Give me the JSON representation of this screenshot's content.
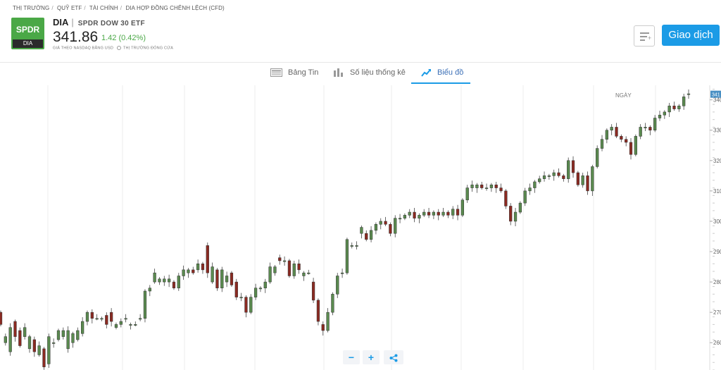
{
  "breadcrumb": [
    "THỊ TRƯỜNG",
    "QUỸ ETF",
    "TÀI CHÍNH",
    "DIA HỢP ĐỒNG CHÊNH LỆCH (CFD)"
  ],
  "logo": {
    "top": "SPDR",
    "bottom": "DIA",
    "color": "#4aa846"
  },
  "instrument": {
    "symbol": "DIA",
    "name": "SPDR DOW 30 ETF",
    "price": "341.86",
    "change": "1.42 (0.42%)",
    "price_note": "GIÁ THEO NASDAQ BẰNG USD",
    "market_status": "THỊ TRƯỜNG ĐÓNG CỬA"
  },
  "buttons": {
    "trade": "Giao dịch",
    "zoom_out": "−",
    "zoom_in": "+"
  },
  "icons": {
    "watchlist": "add-to-watchlist-icon",
    "share": "share-icon"
  },
  "tabs": [
    {
      "label": "Bảng Tin",
      "icon": "news-icon",
      "active": false
    },
    {
      "label": "Số liệu thống kê",
      "icon": "stats-icon",
      "active": false
    },
    {
      "label": "Biểu đồ",
      "icon": "chart-icon",
      "active": true
    }
  ],
  "colors": {
    "accent": "#1b9be6",
    "up": "#5a8a4f",
    "down": "#8b2a22",
    "tab_active_text": "#3b6fb6"
  },
  "chart_data": {
    "type": "candlestick",
    "period_label": "NGÀY",
    "y_ticks": [
      260,
      270,
      280,
      290,
      300,
      310,
      320,
      330,
      340
    ],
    "y_tick_labels": [
      "260",
      "270",
      "280",
      "290",
      "300",
      "310",
      "320",
      "330",
      "340"
    ],
    "ylim": [
      251,
      344.8
    ],
    "last_price_label": "341",
    "last_price": 341.86,
    "grid": true,
    "candles": [
      [
        270,
        266
      ],
      [
        260,
        262
      ],
      [
        257,
        265
      ],
      [
        267,
        262
      ],
      [
        264,
        259
      ],
      [
        262,
        265
      ],
      [
        258,
        262
      ],
      [
        261,
        257
      ],
      [
        256,
        259
      ],
      [
        258,
        252
      ],
      [
        253,
        262
      ],
      [
        260,
        260
      ],
      [
        261,
        264
      ],
      [
        262,
        264
      ],
      [
        258,
        264
      ],
      [
        260,
        263
      ],
      [
        261,
        264
      ],
      [
        263,
        267
      ],
      [
        267,
        270
      ],
      [
        270,
        268
      ],
      [
        268,
        268
      ],
      [
        268,
        268
      ],
      [
        269,
        266
      ],
      [
        270,
        267
      ],
      [
        265,
        266
      ],
      [
        266,
        267
      ],
      [
        268,
        268
      ],
      [
        266,
        266
      ],
      [
        266,
        266
      ],
      [
        268,
        268
      ],
      [
        268,
        277
      ],
      [
        277,
        278
      ],
      [
        280,
        283
      ],
      [
        280,
        281
      ],
      [
        280,
        281
      ],
      [
        280,
        281
      ],
      [
        280,
        278
      ],
      [
        278,
        282
      ],
      [
        282,
        284
      ],
      [
        283,
        284
      ],
      [
        284,
        283
      ],
      [
        284,
        286
      ],
      [
        286,
        284
      ],
      [
        292,
        283
      ],
      [
        280,
        285
      ],
      [
        284,
        278
      ],
      [
        278,
        284
      ],
      [
        280,
        282
      ],
      [
        283,
        279
      ],
      [
        280,
        275
      ],
      [
        275,
        275
      ],
      [
        275,
        270
      ],
      [
        270,
        275
      ],
      [
        275,
        278
      ],
      [
        278,
        278
      ],
      [
        278,
        280
      ],
      [
        280,
        285
      ],
      [
        283,
        285
      ],
      [
        288,
        287
      ],
      [
        287,
        287
      ],
      [
        287,
        282
      ],
      [
        282,
        286
      ],
      [
        286,
        284
      ],
      [
        282,
        283
      ],
      [
        283,
        283
      ],
      [
        280,
        274
      ],
      [
        274,
        267
      ],
      [
        266,
        264
      ],
      [
        264,
        270
      ],
      [
        270,
        276
      ],
      [
        276,
        282
      ],
      [
        283,
        283
      ],
      [
        283,
        294
      ],
      [
        292,
        292
      ],
      [
        292,
        292
      ],
      [
        296,
        298
      ],
      [
        296,
        294
      ],
      [
        294,
        297
      ],
      [
        297,
        299
      ],
      [
        299,
        300
      ],
      [
        300,
        299
      ],
      [
        299,
        296
      ],
      [
        296,
        301
      ],
      [
        301,
        301
      ],
      [
        301,
        302
      ],
      [
        302,
        303
      ],
      [
        303,
        301
      ],
      [
        301,
        302
      ],
      [
        302,
        303
      ],
      [
        303,
        302
      ],
      [
        302,
        303
      ],
      [
        303,
        302
      ],
      [
        302,
        303
      ],
      [
        303,
        302
      ],
      [
        302,
        304
      ],
      [
        304,
        302
      ],
      [
        302,
        307
      ],
      [
        307,
        311
      ],
      [
        311,
        312
      ],
      [
        311,
        312
      ],
      [
        312,
        311
      ],
      [
        311,
        311
      ],
      [
        311,
        312
      ],
      [
        312,
        311
      ],
      [
        311,
        310
      ],
      [
        310,
        305
      ],
      [
        305,
        300
      ],
      [
        300,
        303
      ],
      [
        303,
        306
      ],
      [
        306,
        310
      ],
      [
        310,
        311
      ],
      [
        311,
        313
      ],
      [
        313,
        314
      ],
      [
        314,
        315
      ],
      [
        315,
        315
      ],
      [
        315,
        316
      ],
      [
        316,
        315
      ],
      [
        315,
        314
      ],
      [
        314,
        320
      ],
      [
        320,
        316
      ],
      [
        316,
        312
      ],
      [
        312,
        315
      ],
      [
        315,
        310
      ],
      [
        310,
        318
      ],
      [
        318,
        324
      ],
      [
        324,
        327
      ],
      [
        327,
        330
      ],
      [
        330,
        331
      ],
      [
        331,
        328
      ],
      [
        328,
        327
      ],
      [
        327,
        326
      ],
      [
        326,
        322
      ],
      [
        322,
        328
      ],
      [
        328,
        331
      ],
      [
        331,
        331
      ],
      [
        331,
        330
      ],
      [
        330,
        334
      ],
      [
        334,
        335
      ],
      [
        335,
        336
      ],
      [
        336,
        338
      ],
      [
        338,
        337
      ],
      [
        337,
        338
      ],
      [
        338,
        341
      ],
      [
        342,
        342
      ]
    ]
  }
}
